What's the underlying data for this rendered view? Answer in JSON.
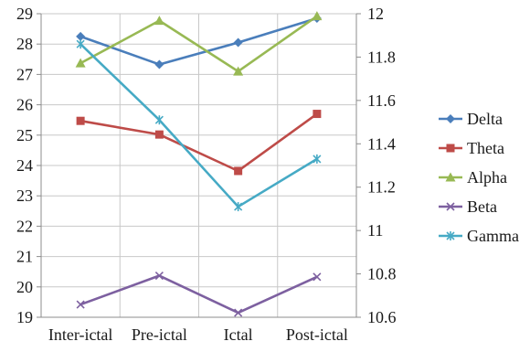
{
  "chart_data": {
    "type": "line",
    "categories": [
      "Inter-ictal",
      "Pre-ictal",
      "Ictal",
      "Post-ictal"
    ],
    "y_left": {
      "min": 19,
      "max": 29,
      "step": 1,
      "ticks": [
        "19",
        "20",
        "21",
        "22",
        "23",
        "24",
        "25",
        "26",
        "27",
        "28",
        "29"
      ]
    },
    "y_right": {
      "min": 10.6,
      "max": 12,
      "step": 0.2,
      "ticks": [
        "10.6",
        "10.8",
        "11",
        "11.2",
        "11.4",
        "11.6",
        "11.8",
        "12"
      ]
    },
    "grid": true,
    "legend_position": "right",
    "series": [
      {
        "name": "Delta",
        "axis": "left",
        "color": "#4a7ebb",
        "marker": "diamond",
        "values": [
          28.25,
          27.33,
          28.05,
          28.85
        ]
      },
      {
        "name": "Theta",
        "axis": "left",
        "color": "#be4b48",
        "marker": "square",
        "values": [
          25.47,
          25.02,
          23.82,
          25.7
        ]
      },
      {
        "name": "Alpha",
        "axis": "left",
        "color": "#98b954",
        "marker": "triangle",
        "values": [
          27.37,
          28.77,
          27.1,
          28.92
        ]
      },
      {
        "name": "Beta",
        "axis": "left",
        "color": "#7d60a0",
        "marker": "x",
        "values": [
          19.42,
          20.37,
          19.15,
          20.33
        ]
      },
      {
        "name": "Gamma",
        "axis": "right",
        "color": "#46aac5",
        "marker": "star",
        "values": [
          11.86,
          11.51,
          11.11,
          11.33
        ]
      }
    ]
  }
}
